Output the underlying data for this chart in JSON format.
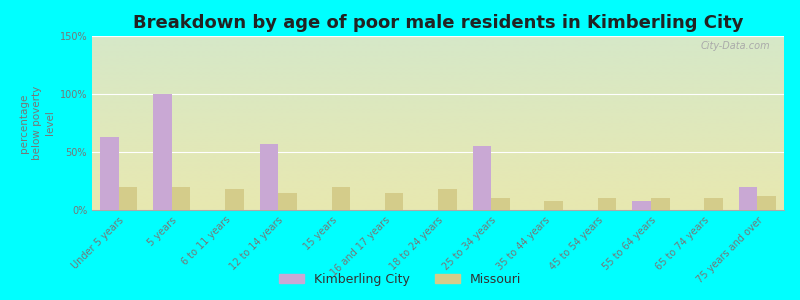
{
  "title": "Breakdown by age of poor male residents in Kimberling City",
  "ylabel": "percentage\nbelow poverty\nlevel",
  "categories": [
    "Under 5 years",
    "5 years",
    "6 to 11 years",
    "12 to 14 years",
    "15 years",
    "16 and 17 years",
    "18 to 24 years",
    "25 to 34 years",
    "35 to 44 years",
    "45 to 54 years",
    "55 to 64 years",
    "65 to 74 years",
    "75 years and over"
  ],
  "kimberling_values": [
    63,
    100,
    0,
    57,
    0,
    0,
    0,
    55,
    0,
    0,
    8,
    0,
    20
  ],
  "missouri_values": [
    20,
    20,
    18,
    15,
    20,
    15,
    18,
    10,
    8,
    10,
    10,
    10,
    12
  ],
  "kimberling_color": "#c9a8d4",
  "missouri_color": "#d4cc8a",
  "background_top": "#d6e8c8",
  "background_bottom": "#e8e8b0",
  "outer_background": "#00ffff",
  "ylim": [
    0,
    150
  ],
  "yticks": [
    0,
    50,
    100,
    150
  ],
  "ytick_labels": [
    "0%",
    "50%",
    "100%",
    "150%"
  ],
  "bar_width": 0.35,
  "title_fontsize": 13,
  "tick_fontsize": 7,
  "ylabel_fontsize": 7.5,
  "legend_labels": [
    "Kimberling City",
    "Missouri"
  ],
  "watermark": "City-Data.com"
}
